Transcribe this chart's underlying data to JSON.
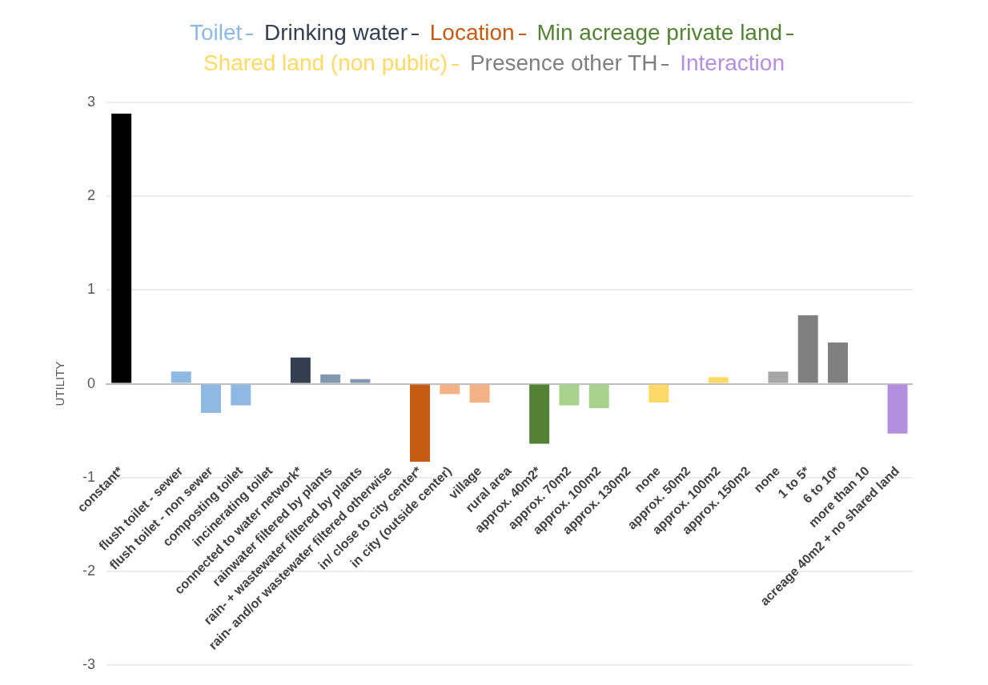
{
  "chart_data": {
    "type": "bar",
    "stacked": true,
    "ylabel": "UTILITY",
    "ylim": [
      -3,
      3
    ],
    "yticks": [
      -3,
      -2,
      -1,
      0,
      1,
      2,
      3
    ],
    "grid": "y",
    "legend": "top",
    "categories": [
      "constant*",
      null,
      "flush toilet - sewer",
      "flush toilet - non sewer",
      "composting toilet",
      "incinerating toilet",
      "connected to water network*",
      "rainwater filtered by plants",
      "rain- + wastewater filtered by plants",
      "rain- and/or wastewater filtered otherwise",
      "in/ close to city center*",
      "in city (outside center)",
      "village",
      "rural area",
      "approx. 40m2*",
      "approx. 70m2",
      "approx. 100m2",
      "approx. 130m2",
      "none",
      "approx. 50m2",
      "approx. 100m2",
      "approx. 150m2",
      "none",
      "1 to 5*",
      "6 to 10*",
      "more than 10",
      "acreage 40m2 + no shared land"
    ],
    "series": [
      {
        "color": "#000000",
        "values": [
          2.88,
          null,
          null,
          null,
          null,
          null,
          null,
          null,
          null,
          null,
          null,
          null,
          null,
          null,
          null,
          null,
          null,
          null,
          null,
          null,
          null,
          null,
          null,
          null,
          null,
          null,
          null
        ]
      },
      {
        "name": "Toilet",
        "color": "#8db9e2",
        "colors": [
          null,
          null,
          "#8db9e2",
          "#8db9e2",
          "#8db9e2",
          null,
          null,
          null,
          null,
          null,
          null,
          null,
          null,
          null,
          null,
          null,
          null,
          null,
          null,
          null,
          null,
          null,
          null,
          null,
          null,
          null,
          null
        ],
        "values": [
          null,
          null,
          0.13,
          -0.31,
          -0.23,
          null,
          null,
          null,
          null,
          null,
          null,
          null,
          null,
          null,
          null,
          null,
          null,
          null,
          null,
          null,
          null,
          null,
          null,
          null,
          null,
          null,
          null
        ]
      },
      {
        "name": "Drinking water",
        "color": "#333f50",
        "colors": [
          null,
          null,
          null,
          null,
          null,
          null,
          "#333f50",
          "#8497b0",
          "#8497b0",
          null,
          null,
          null,
          null,
          null,
          null,
          null,
          null,
          null,
          null,
          null,
          null,
          null,
          null,
          null,
          null,
          null,
          null
        ],
        "values": [
          null,
          null,
          null,
          null,
          null,
          null,
          0.28,
          0.1,
          0.05,
          null,
          null,
          null,
          null,
          null,
          null,
          null,
          null,
          null,
          null,
          null,
          null,
          null,
          null,
          null,
          null,
          null,
          null
        ]
      },
      {
        "name": "Location",
        "color": "#c55a11",
        "colors": [
          null,
          null,
          null,
          null,
          null,
          null,
          null,
          null,
          null,
          null,
          "#c55a11",
          "#f4b183",
          "#f4b183",
          null,
          null,
          null,
          null,
          null,
          null,
          null,
          null,
          null,
          null,
          null,
          null,
          null,
          null
        ],
        "values": [
          null,
          null,
          null,
          null,
          null,
          null,
          null,
          null,
          null,
          null,
          -0.83,
          -0.11,
          -0.2,
          null,
          null,
          null,
          null,
          null,
          null,
          null,
          null,
          null,
          null,
          null,
          null,
          null,
          null
        ]
      },
      {
        "name": "Min acreage private land",
        "color": "#548235",
        "colors": [
          null,
          null,
          null,
          null,
          null,
          null,
          null,
          null,
          null,
          null,
          null,
          null,
          null,
          null,
          "#548235",
          "#a9d18e",
          "#a9d18e",
          null,
          null,
          null,
          null,
          null,
          null,
          null,
          null,
          null,
          null
        ],
        "values": [
          null,
          null,
          null,
          null,
          null,
          null,
          null,
          null,
          null,
          null,
          null,
          null,
          null,
          null,
          -0.64,
          -0.23,
          -0.26,
          null,
          null,
          null,
          null,
          null,
          null,
          null,
          null,
          null,
          null
        ]
      },
      {
        "name": "Shared land (non public)",
        "color": "#ffd966",
        "colors": [
          null,
          null,
          null,
          null,
          null,
          null,
          null,
          null,
          null,
          null,
          null,
          null,
          null,
          null,
          null,
          null,
          null,
          null,
          "#ffd966",
          null,
          "#ffd966",
          null,
          null,
          null,
          null,
          null,
          null
        ],
        "values": [
          null,
          null,
          null,
          null,
          null,
          null,
          null,
          null,
          null,
          null,
          null,
          null,
          null,
          null,
          null,
          null,
          null,
          null,
          -0.2,
          null,
          0.07,
          null,
          null,
          null,
          null,
          null,
          null
        ]
      },
      {
        "name": "Presence other TH",
        "color": "#7f7f7f",
        "colors": [
          null,
          null,
          null,
          null,
          null,
          null,
          null,
          null,
          null,
          null,
          null,
          null,
          null,
          null,
          null,
          null,
          null,
          null,
          null,
          null,
          null,
          null,
          "#a6a6a6",
          "#808080",
          "#808080",
          null,
          null
        ],
        "values": [
          null,
          null,
          null,
          null,
          null,
          null,
          null,
          null,
          null,
          null,
          null,
          null,
          null,
          null,
          null,
          null,
          null,
          null,
          null,
          null,
          null,
          null,
          0.13,
          0.73,
          0.44,
          null,
          null
        ]
      },
      {
        "name": "Interaction",
        "color": "#b48fe0",
        "colors": [
          null,
          null,
          null,
          null,
          null,
          null,
          null,
          null,
          null,
          null,
          null,
          null,
          null,
          null,
          null,
          null,
          null,
          null,
          null,
          null,
          null,
          null,
          null,
          null,
          null,
          null,
          "#b48fe0"
        ],
        "values": [
          null,
          null,
          null,
          null,
          null,
          null,
          null,
          null,
          null,
          null,
          null,
          null,
          null,
          null,
          null,
          null,
          null,
          null,
          null,
          null,
          null,
          null,
          null,
          null,
          null,
          null,
          -0.53
        ]
      }
    ]
  }
}
